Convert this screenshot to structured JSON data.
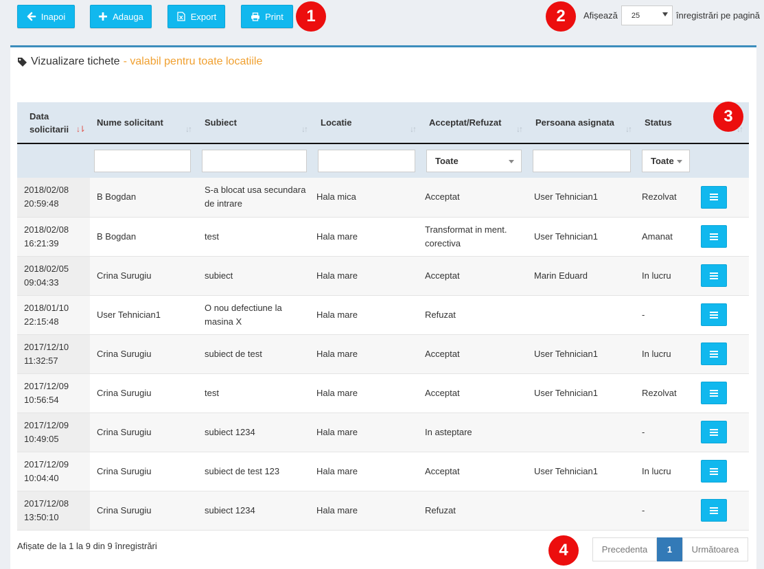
{
  "toolbar": {
    "back_label": "Inapoi",
    "add_label": "Adauga",
    "export_label": "Export",
    "print_label": "Print"
  },
  "page_length": {
    "prefix": "Afișează",
    "value": "25",
    "suffix": "înregistrări pe pagină"
  },
  "panel": {
    "title": "Vizualizare tichete",
    "subtitle": " - valabil pentru toate locatiile"
  },
  "table": {
    "columns": [
      "Data solicitarii",
      "Nume solicitant",
      "Subiect",
      "Locatie",
      "Acceptat/Refuzat",
      "Persoana asignata",
      "Status"
    ],
    "filters": {
      "acceptat": "Toate",
      "status": "Toate"
    },
    "rows": [
      {
        "date": "2018/02/08",
        "time": "20:59:48",
        "nume": "B Bogdan",
        "subiect": "S-a blocat usa secundara de intrare",
        "locatie": "Hala mica",
        "acceptat": "Acceptat",
        "persoana": "User Tehnician1",
        "status": "Rezolvat"
      },
      {
        "date": "2018/02/08",
        "time": "16:21:39",
        "nume": "B Bogdan",
        "subiect": "test",
        "locatie": "Hala mare",
        "acceptat": "Transformat in ment. corectiva",
        "persoana": "User Tehnician1",
        "status": "Amanat"
      },
      {
        "date": "2018/02/05",
        "time": "09:04:33",
        "nume": "Crina Surugiu",
        "subiect": "subiect",
        "locatie": "Hala mare",
        "acceptat": "Acceptat",
        "persoana": "Marin Eduard",
        "status": "In lucru"
      },
      {
        "date": "2018/01/10",
        "time": "22:15:48",
        "nume": "User Tehnician1",
        "subiect": "O nou defectiune la masina X",
        "locatie": "Hala mare",
        "acceptat": "Refuzat",
        "persoana": "",
        "status": "-"
      },
      {
        "date": "2017/12/10",
        "time": "11:32:57",
        "nume": "Crina Surugiu",
        "subiect": "subiect de test",
        "locatie": "Hala mare",
        "acceptat": "Acceptat",
        "persoana": "User Tehnician1",
        "status": "In lucru"
      },
      {
        "date": "2017/12/09",
        "time": "10:56:54",
        "nume": "Crina Surugiu",
        "subiect": "test",
        "locatie": "Hala mare",
        "acceptat": "Acceptat",
        "persoana": "User Tehnician1",
        "status": "Rezolvat"
      },
      {
        "date": "2017/12/09",
        "time": "10:49:05",
        "nume": "Crina Surugiu",
        "subiect": "subiect 1234",
        "locatie": "Hala mare",
        "acceptat": "In asteptare",
        "persoana": "",
        "status": "-"
      },
      {
        "date": "2017/12/09",
        "time": "10:04:40",
        "nume": "Crina Surugiu",
        "subiect": "subiect de test 123",
        "locatie": "Hala mare",
        "acceptat": "Acceptat",
        "persoana": "User Tehnician1",
        "status": "In lucru"
      },
      {
        "date": "2017/12/08",
        "time": "13:50:10",
        "nume": "Crina Surugiu",
        "subiect": "subiect 1234",
        "locatie": "Hala mare",
        "acceptat": "Refuzat",
        "persoana": "",
        "status": "-"
      }
    ]
  },
  "footer": {
    "info": "Afișate de la 1 la 9 din 9 înregistrări",
    "prev_label": "Precedenta",
    "page_label": "1",
    "next_label": "Următoarea"
  },
  "annotations": [
    "1",
    "2",
    "3",
    "4"
  ],
  "icons": {
    "back": "arrow-left-icon",
    "add": "plus-icon",
    "export": "excel-file-icon",
    "print": "printer-icon",
    "title": "tag-icon",
    "row_action": "menu-icon"
  },
  "colors": {
    "accent": "#11b8ee",
    "badge": "#ec0e0e",
    "subtitle": "#f0a030",
    "pager_active": "#337ab7"
  }
}
